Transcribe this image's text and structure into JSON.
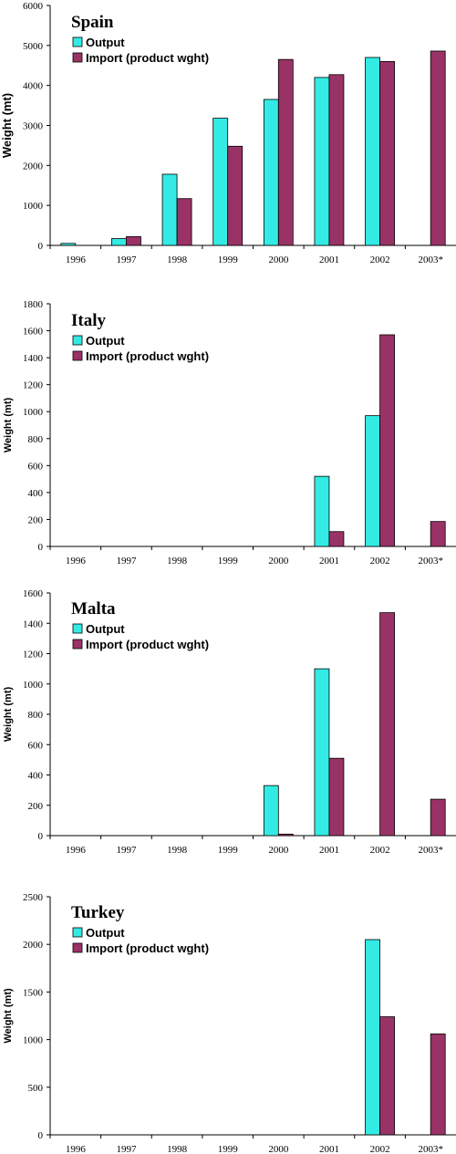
{
  "colors": {
    "output": "#33ebe4",
    "import": "#993366",
    "stroke": "#000000"
  },
  "legend": {
    "output": "Output",
    "import": "Import (product wght)"
  },
  "ylabel": "Weight (mt)",
  "chart_data": [
    {
      "type": "bar",
      "title": "Spain",
      "categories": [
        "1996",
        "1997",
        "1998",
        "1999",
        "2000",
        "2001",
        "2002",
        "2003*"
      ],
      "ylim": [
        0,
        6000
      ],
      "yticks": [
        0,
        1000,
        2000,
        3000,
        4000,
        5000,
        6000
      ],
      "series": [
        {
          "name": "Output",
          "values": [
            50,
            170,
            1780,
            3180,
            3650,
            4200,
            4700,
            null
          ]
        },
        {
          "name": "Import (product wght)",
          "values": [
            null,
            220,
            1170,
            2480,
            4650,
            4270,
            4600,
            4860
          ]
        }
      ],
      "xlabel": "",
      "ylabel": "Weight (mt)"
    },
    {
      "type": "bar",
      "title": "Italy",
      "categories": [
        "1996",
        "1997",
        "1998",
        "1999",
        "2000",
        "2001",
        "2002",
        "2003*"
      ],
      "ylim": [
        0,
        1800
      ],
      "yticks": [
        0,
        200,
        400,
        600,
        800,
        1000,
        1200,
        1400,
        1600,
        1800
      ],
      "series": [
        {
          "name": "Output",
          "values": [
            null,
            null,
            null,
            null,
            null,
            520,
            970,
            null
          ]
        },
        {
          "name": "Import (product wght)",
          "values": [
            null,
            null,
            null,
            null,
            null,
            110,
            1570,
            185
          ]
        }
      ],
      "xlabel": "",
      "ylabel": "Weight (mt)"
    },
    {
      "type": "bar",
      "title": "Malta",
      "categories": [
        "1996",
        "1997",
        "1998",
        "1999",
        "2000",
        "2001",
        "2002",
        "2003*"
      ],
      "ylim": [
        0,
        1600
      ],
      "yticks": [
        0,
        200,
        400,
        600,
        800,
        1000,
        1200,
        1400,
        1600
      ],
      "series": [
        {
          "name": "Output",
          "values": [
            null,
            null,
            null,
            null,
            330,
            1100,
            null,
            null
          ]
        },
        {
          "name": "Import (product wght)",
          "values": [
            null,
            null,
            null,
            null,
            10,
            510,
            1470,
            240
          ]
        }
      ],
      "xlabel": "",
      "ylabel": "Weight (mt)"
    },
    {
      "type": "bar",
      "title": "Turkey",
      "categories": [
        "1996",
        "1997",
        "1998",
        "1999",
        "2000",
        "2001",
        "2002",
        "2003*"
      ],
      "ylim": [
        0,
        2500
      ],
      "yticks": [
        0,
        500,
        1000,
        1500,
        2000,
        2500
      ],
      "series": [
        {
          "name": "Output",
          "values": [
            null,
            null,
            null,
            null,
            null,
            null,
            2050,
            null
          ]
        },
        {
          "name": "Import (product wght)",
          "values": [
            null,
            null,
            null,
            null,
            null,
            null,
            1240,
            1060
          ]
        }
      ],
      "xlabel": "",
      "ylabel": "Weight (mt)"
    }
  ]
}
